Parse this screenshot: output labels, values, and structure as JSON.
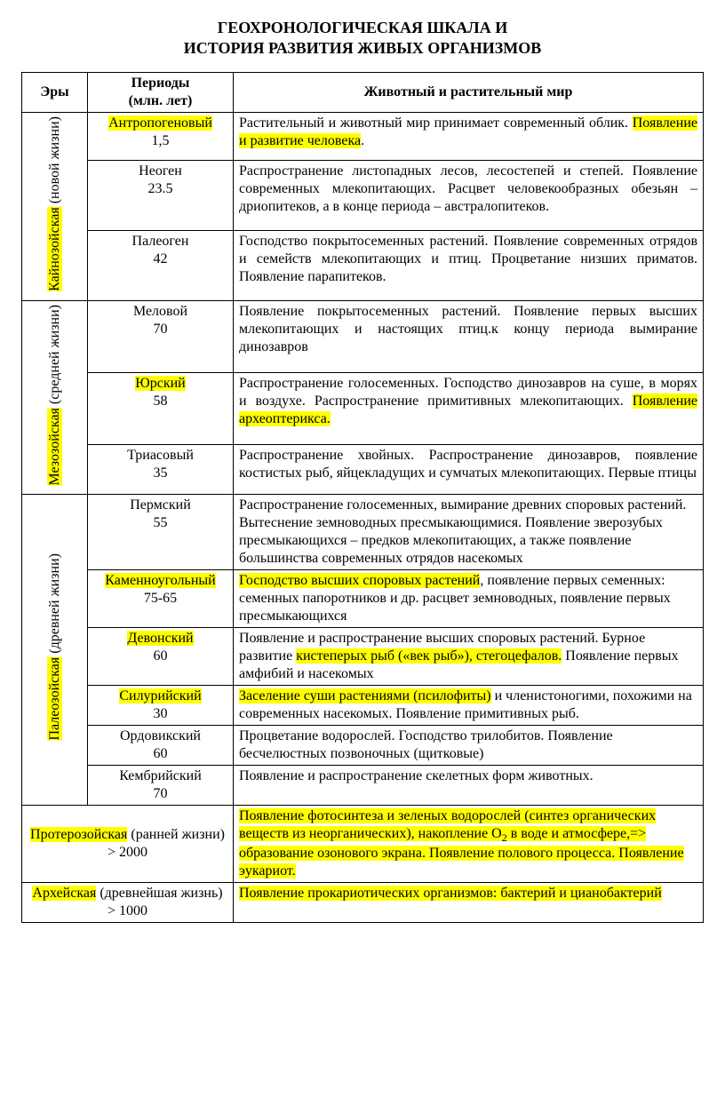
{
  "title_line1": "ГЕОХРОНОЛОГИЧЕСКАЯ ШКАЛА И",
  "title_line2": "ИСТОРИЯ РАЗВИТИЯ ЖИВЫХ ОРГАНИЗМОВ",
  "headers": {
    "era": "Эры",
    "period_line1": "Периоды",
    "period_line2": "(млн. лет)",
    "world": "Животный и растительный мир"
  },
  "eras": {
    "cenozoic": {
      "name": "Кайнозойская",
      "sub": " (новой жизни)"
    },
    "mesozoic": {
      "name": "Мезозойская",
      "sub": " (средней жизни)"
    },
    "paleozoic": {
      "name": "Палеозойская",
      "sub": " (древней жизни)"
    }
  },
  "rows": {
    "anthro": {
      "period": "Антропогеновый",
      "age": "1,5",
      "d_pre": "Растительный и животный мир принимает современный облик. ",
      "d_hl": "Появление и развитие человека",
      "d_post": "."
    },
    "neogen": {
      "period": "Неоген",
      "age": "23.5",
      "d": "Распространение листопадных лесов, лесостепей и степей. Появление современных млекопитающих. Расцвет человекообразных обезьян – дриопитеков, а в конце периода – австралопитеков."
    },
    "paleogen": {
      "period": "Палеоген",
      "age": "42",
      "d": "Господство покрытосеменных растений. Появление современных отрядов и семейств млекопитающих и птиц. Процветание низших приматов. Появление парапитеков."
    },
    "cret": {
      "period": "Меловой",
      "age": "70",
      "d": "Появление покрытосеменных растений. Появление первых высших млекопитающих и настоящих птиц.к концу периода вымирание динозавров"
    },
    "jura": {
      "period": "Юрский",
      "age": "58",
      "d_pre": "Распространение голосеменных. Господство динозавров на суше, в морях и воздухе. Распространение примитивных млекопитающих. ",
      "d_hl": "Появление археоптерикса."
    },
    "trias": {
      "period": "Триасовый",
      "age": "35",
      "d": "Распространение хвойных. Распространение динозавров, появление костистых рыб, яйцекладущих и сумчатых млекопитающих. Первые птицы"
    },
    "perm": {
      "period": "Пермский",
      "age": "55",
      "d": "Распространение голосеменных, вымирание древних споровых растений. Вытеснение земноводных пресмыкающимися. Появление зверозубых пресмыкающихся – предков млекопитающих, а также появление большинства современных отрядов насекомых"
    },
    "carbon": {
      "period": "Каменноугольный",
      "age": "75-65",
      "d_hl": "Господство высших споровых растений",
      "d_post": ", появление первых семенных: семенных папоротников и др. расцвет земноводных, появление первых пресмыкающихся"
    },
    "devon": {
      "period": "Девонский",
      "age": "60",
      "d_pre": "Появление и распространение высших споровых растений. Бурное развитие ",
      "d_hl": "кистеперых рыб («век рыб»), стегоцефалов.",
      "d_post": " Появление первых амфибий и насекомых"
    },
    "silur": {
      "period": "Силурийский",
      "age": "30",
      "d_hl": "Заселение суши растениями (псилофиты)",
      "d_post": " и членистоногими, похожими на современных насекомых. Появление примитивных рыб."
    },
    "ordov": {
      "period": "Ордовикский",
      "age": "60",
      "d": "Процветание водорослей. Господство трилобитов. Появление бесчелюстных позвоночных (щитковые)"
    },
    "cambr": {
      "period": "Кембрийский",
      "age": "70",
      "d": "Появление и распространение скелетных форм животных."
    },
    "proto": {
      "era_name": "Протерозойская",
      "era_rest": " (ранней жизни) > 2000",
      "d_hl1": "Появление фотосинтеза и зеленых водорослей (синтез органических веществ из неорганических), накопление О",
      "d_sub": "2",
      "d_hl2": " в воде и атмосфере,=> образование озонового экрана. Появление полового процесса. Появление эукариот."
    },
    "archae": {
      "era_name": "Архейская",
      "era_rest": " (древнейшая жизнь) > 1000",
      "d_hl": "Появление прокариотических организмов: бактерий и цианобактерий"
    }
  }
}
